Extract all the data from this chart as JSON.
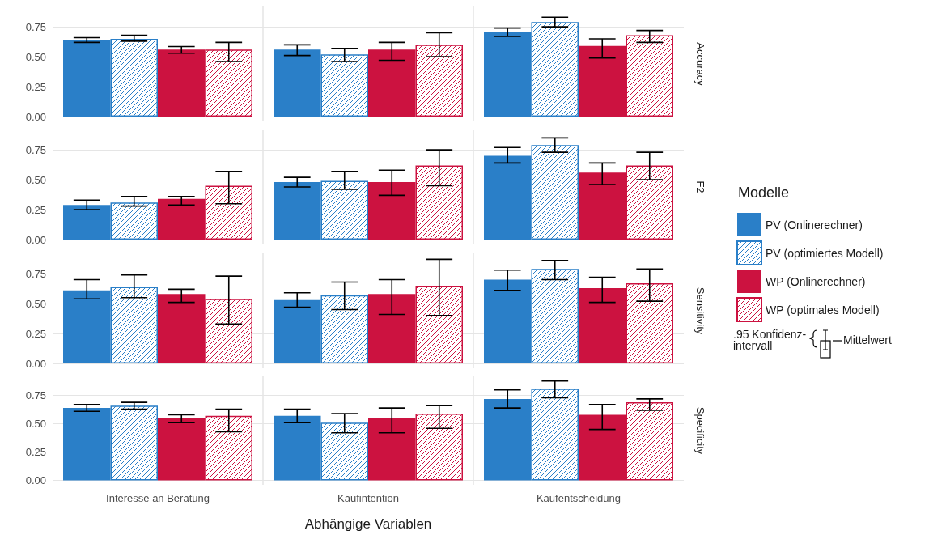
{
  "chart_data": [
    {
      "type": "bar",
      "ylabel": "Accuracy",
      "categories": [
        null,
        null,
        null
      ],
      "ylim": [
        -0.04,
        0.92
      ],
      "yticks": [
        {
          "value": 0,
          "label": "0.00"
        },
        {
          "value": 0.25,
          "label": "0.25"
        },
        {
          "value": 0.5,
          "label": "0.50"
        },
        {
          "value": 0.75,
          "label": "0.75"
        }
      ],
      "grid": true,
      "tick_labels": "y",
      "series": [
        {
          "color": "#2a7fc8",
          "values": [
            0.64,
            0.56,
            0.71
          ],
          "errors": [
            [
              0.62,
              0.66
            ],
            [
              0.51,
              0.6
            ],
            [
              0.67,
              0.74
            ]
          ]
        },
        {
          "color": "#2a7fc8",
          "values": [
            0.65,
            0.52,
            0.79
          ],
          "errors": [
            [
              0.63,
              0.68
            ],
            [
              0.46,
              0.57
            ],
            [
              0.75,
              0.83
            ]
          ]
        },
        {
          "color": "#cc1240",
          "values": [
            0.56,
            0.56,
            0.59
          ],
          "errors": [
            [
              0.53,
              0.585
            ],
            [
              0.47,
              0.62
            ],
            [
              0.49,
              0.65
            ]
          ]
        },
        {
          "color": "#cc1240",
          "values": [
            0.56,
            0.6,
            0.68
          ],
          "errors": [
            [
              0.46,
              0.62
            ],
            [
              0.5,
              0.7
            ],
            [
              0.62,
              0.72
            ]
          ]
        }
      ]
    },
    {
      "type": "bar",
      "ylabel": "F2",
      "categories": [
        null,
        null,
        null
      ],
      "ylim": [
        -0.04,
        0.92
      ],
      "yticks": [
        {
          "value": 0,
          "label": "0.00"
        },
        {
          "value": 0.25,
          "label": "0.25"
        },
        {
          "value": 0.5,
          "label": "0.50"
        },
        {
          "value": 0.75,
          "label": "0.75"
        }
      ],
      "grid": true,
      "tick_labels": "y",
      "legend": "right",
      "legend_title": "Modelle",
      "annotations": [
        ".95 Konfidenz-intervall",
        "Mittelwert"
      ],
      "series": [
        {
          "name": "PV (Onlinerechner)",
          "color": "#2a7fc8",
          "values": [
            0.29,
            0.48,
            0.7
          ],
          "errors": [
            [
              0.25,
              0.33
            ],
            [
              0.44,
              0.52
            ],
            [
              0.64,
              0.77
            ]
          ]
        },
        {
          "name": "PV (optimiertes Modell)",
          "color": "#2a7fc8",
          "values": [
            0.31,
            0.49,
            0.79
          ],
          "errors": [
            [
              0.28,
              0.36
            ],
            [
              0.42,
              0.57
            ],
            [
              0.73,
              0.85
            ]
          ]
        },
        {
          "name": "WP (Onlinerechner)",
          "color": "#cc1240",
          "values": [
            0.34,
            0.48,
            0.56
          ],
          "errors": [
            [
              0.29,
              0.36
            ],
            [
              0.37,
              0.58
            ],
            [
              0.46,
              0.64
            ]
          ]
        },
        {
          "name": "WP (optimales Modell)",
          "color": "#cc1240",
          "values": [
            0.45,
            0.62,
            0.62
          ],
          "errors": [
            [
              0.3,
              0.57
            ],
            [
              0.45,
              0.75
            ],
            [
              0.5,
              0.73
            ]
          ]
        }
      ]
    },
    {
      "type": "bar",
      "ylabel": "Sensitivity",
      "categories": [
        null,
        null,
        null
      ],
      "ylim": [
        -0.04,
        0.92
      ],
      "yticks": [
        {
          "value": 0,
          "label": "0.00"
        },
        {
          "value": 0.25,
          "label": "0.25"
        },
        {
          "value": 0.5,
          "label": "0.50"
        },
        {
          "value": 0.75,
          "label": "0.75"
        }
      ],
      "grid": true,
      "tick_labels": "y",
      "series": [
        {
          "color": "#2a7fc8",
          "values": [
            0.61,
            0.53,
            0.7
          ],
          "errors": [
            [
              0.54,
              0.7
            ],
            [
              0.47,
              0.59
            ],
            [
              0.61,
              0.78
            ]
          ]
        },
        {
          "color": "#2a7fc8",
          "values": [
            0.64,
            0.57,
            0.79
          ],
          "errors": [
            [
              0.55,
              0.74
            ],
            [
              0.45,
              0.68
            ],
            [
              0.7,
              0.86
            ]
          ]
        },
        {
          "color": "#cc1240",
          "values": [
            0.58,
            0.58,
            0.63
          ],
          "errors": [
            [
              0.51,
              0.62
            ],
            [
              0.41,
              0.7
            ],
            [
              0.51,
              0.72
            ]
          ]
        },
        {
          "color": "#cc1240",
          "values": [
            0.54,
            0.65,
            0.67
          ],
          "errors": [
            [
              0.33,
              0.73
            ],
            [
              0.4,
              0.87
            ],
            [
              0.52,
              0.79
            ]
          ]
        }
      ]
    },
    {
      "type": "bar",
      "ylabel": "Specificity",
      "xlabel": "Abhängige Variablen",
      "categories": [
        "Interesse an Beratung",
        "Kaufintention",
        "Kaufentscheidung"
      ],
      "ylim": [
        -0.04,
        0.92
      ],
      "yticks": [
        {
          "value": 0,
          "label": "0.00"
        },
        {
          "value": 0.25,
          "label": "0.25"
        },
        {
          "value": 0.5,
          "label": "0.50"
        },
        {
          "value": 0.75,
          "label": "0.75"
        }
      ],
      "grid": true,
      "series": [
        {
          "color": "#2a7fc8",
          "values": [
            0.64,
            0.57,
            0.72
          ],
          "errors": [
            [
              0.61,
              0.67
            ],
            [
              0.51,
              0.63
            ],
            [
              0.64,
              0.8
            ]
          ]
        },
        {
          "color": "#2a7fc8",
          "values": [
            0.66,
            0.51,
            0.81
          ],
          "errors": [
            [
              0.63,
              0.69
            ],
            [
              0.42,
              0.59
            ],
            [
              0.73,
              0.88
            ]
          ]
        },
        {
          "color": "#cc1240",
          "values": [
            0.55,
            0.55,
            0.58
          ],
          "errors": [
            [
              0.51,
              0.58
            ],
            [
              0.42,
              0.64
            ],
            [
              0.45,
              0.67
            ]
          ]
        },
        {
          "color": "#cc1240",
          "values": [
            0.57,
            0.59,
            0.69
          ],
          "errors": [
            [
              0.43,
              0.63
            ],
            [
              0.46,
              0.66
            ],
            [
              0.62,
              0.72
            ]
          ]
        }
      ]
    }
  ]
}
